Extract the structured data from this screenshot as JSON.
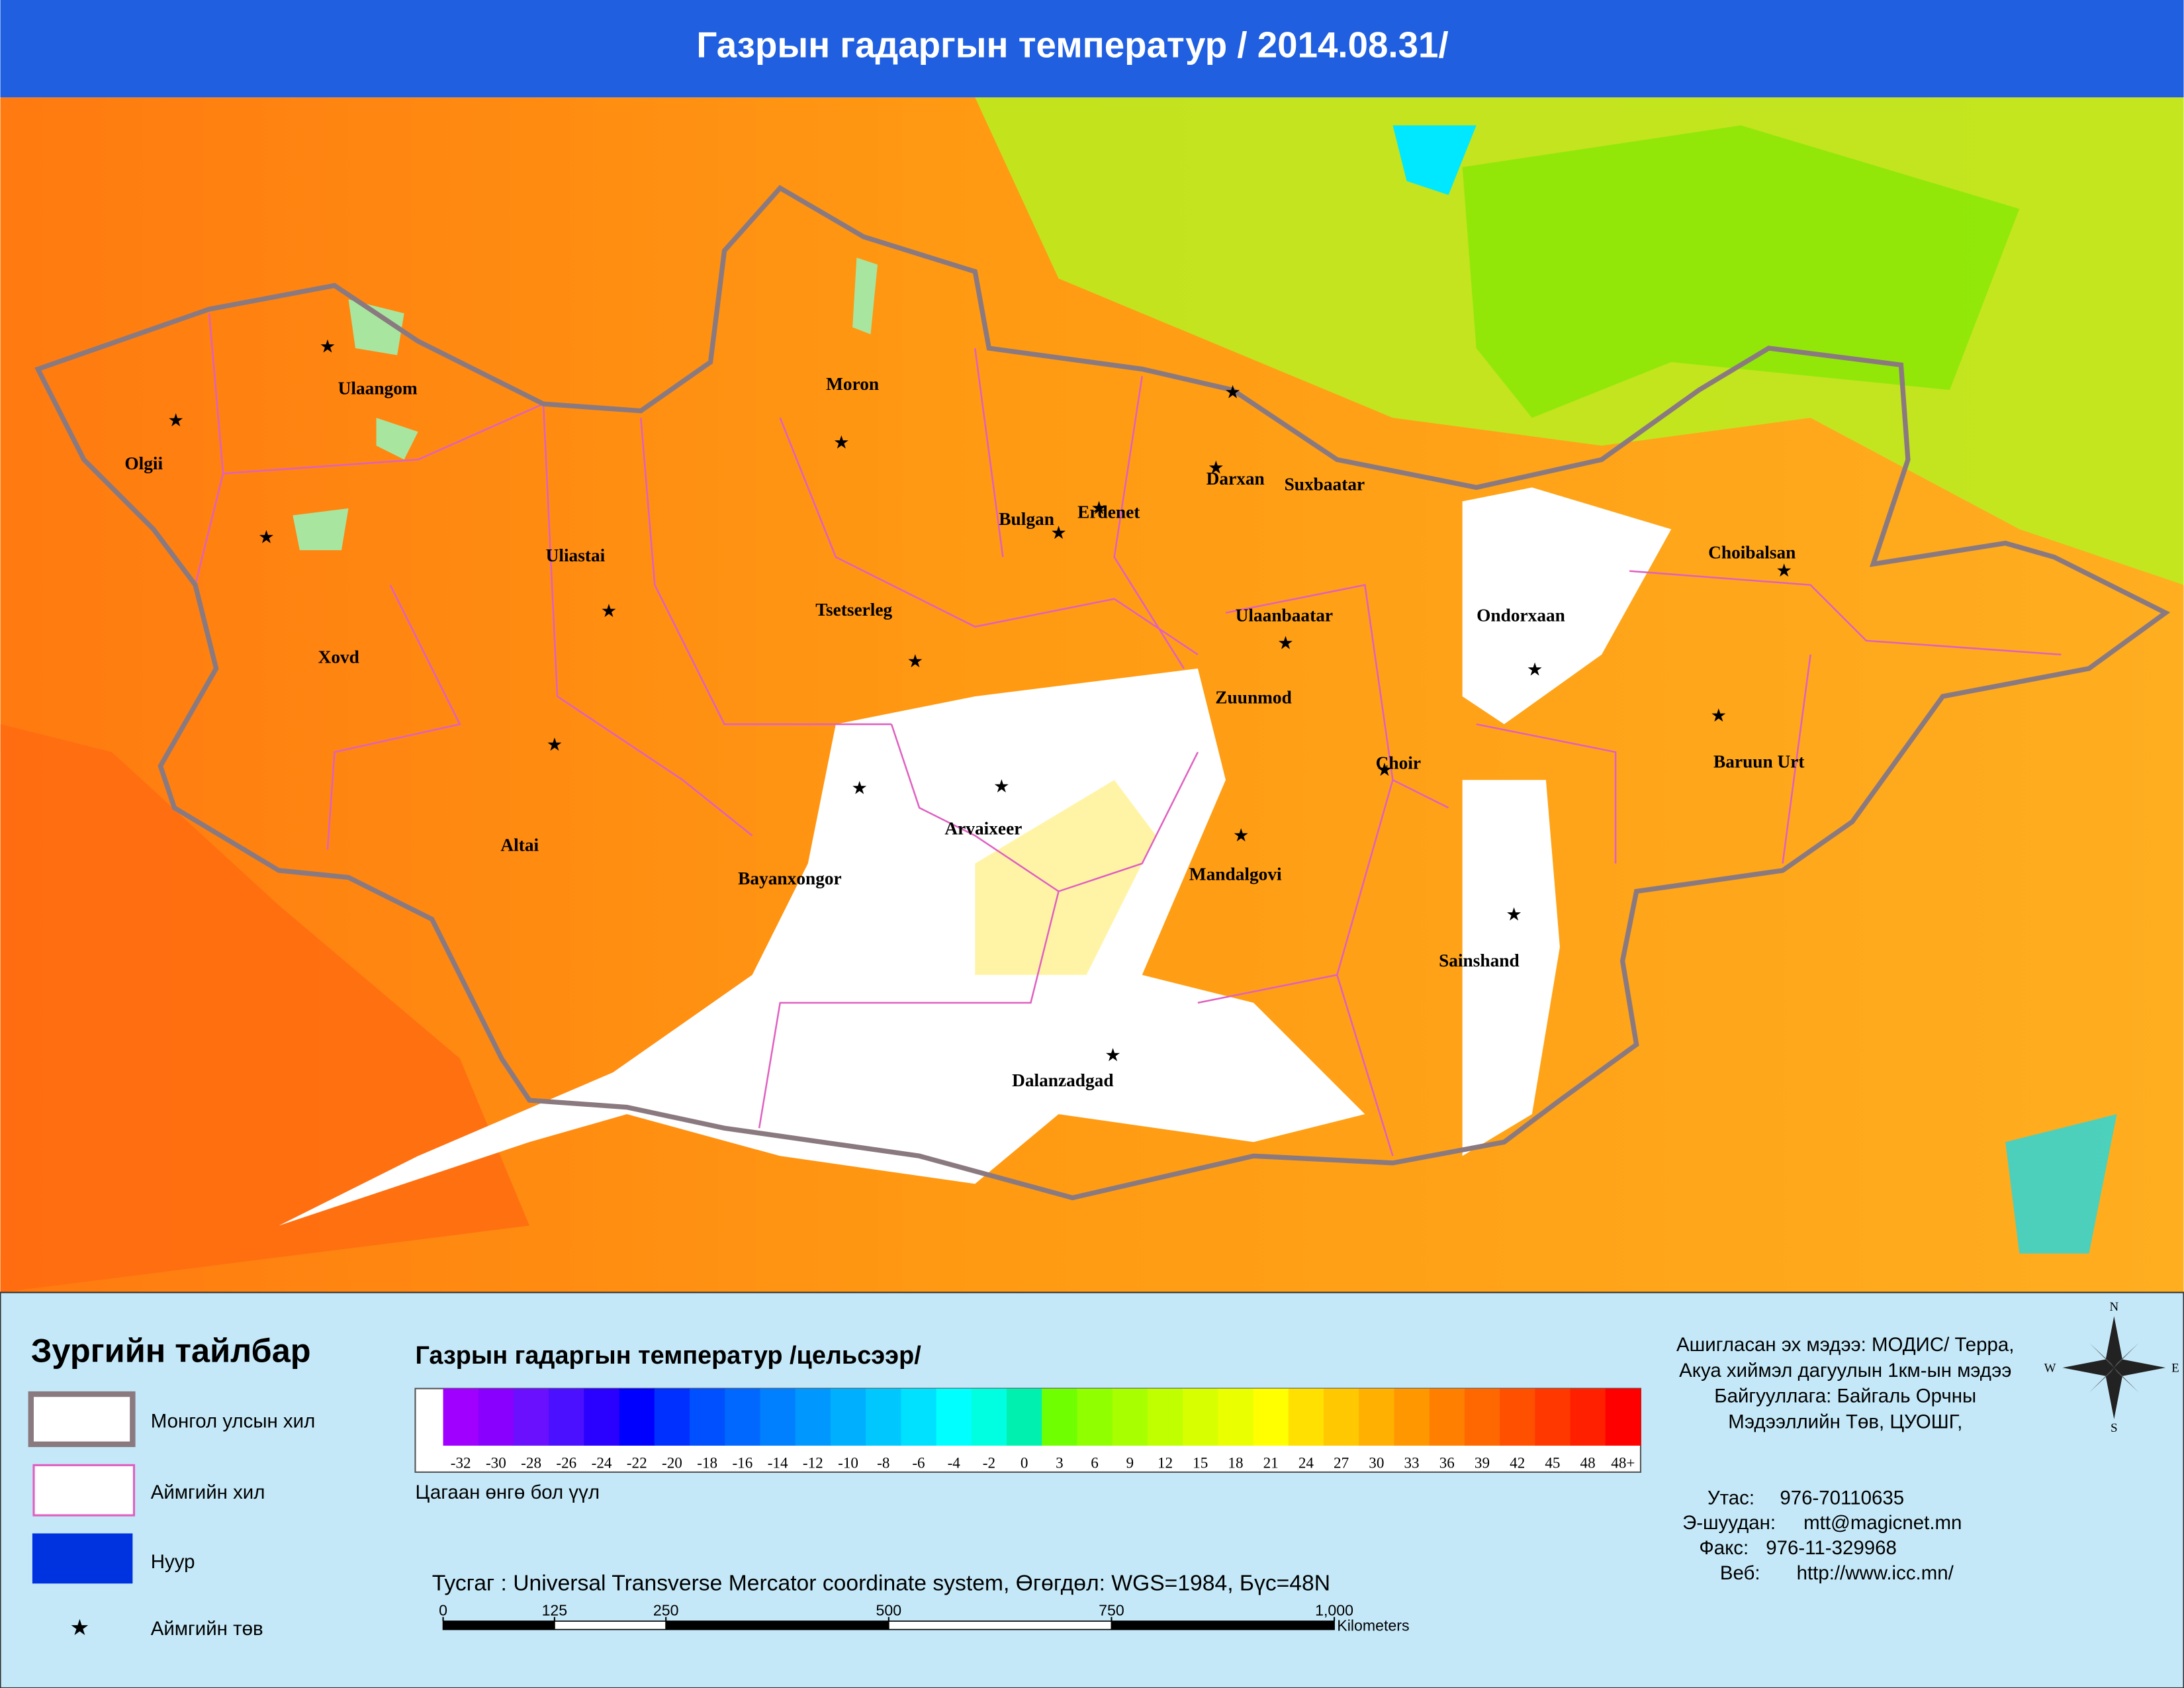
{
  "header": {
    "title": "Газрын гадаргын температур / 2014.08.31/"
  },
  "map": {
    "cities": [
      "Olgii",
      "Ulaangom",
      "Xovd",
      "Uliastai",
      "Altai",
      "Moron",
      "Tsetserleg",
      "Bayanxongor",
      "Arvaixeer",
      "Bulgan",
      "Erdenet",
      "Darxan",
      "Suxbaatar",
      "Ulaanbaatar",
      "Zuunmod",
      "Mandalgovi",
      "Choir",
      "Dalanzadgad",
      "Sainshand",
      "Ondorxaan",
      "Choibalsan",
      "Baruun Urt"
    ]
  },
  "legend": {
    "title": "Зургийн тайлбар",
    "items": [
      "Монгол улсын хил",
      "Аймгийн хил",
      "Нуур",
      "Аймгийн төв"
    ]
  },
  "colorbar": {
    "title": "Газрын гадаргын температур /цельсээр/",
    "note": "Цагаан өнгө бол үүл",
    "entries": [
      {
        "label": -32,
        "color": "#a000ff"
      },
      {
        "label": -30,
        "color": "#8a00ff"
      },
      {
        "label": -28,
        "color": "#6a10ff"
      },
      {
        "label": -26,
        "color": "#4a10ff"
      },
      {
        "label": -24,
        "color": "#2a00ff"
      },
      {
        "label": -22,
        "color": "#0000ff"
      },
      {
        "label": -20,
        "color": "#0030ff"
      },
      {
        "label": -18,
        "color": "#0050ff"
      },
      {
        "label": -16,
        "color": "#0068ff"
      },
      {
        "label": -14,
        "color": "#0080ff"
      },
      {
        "label": -12,
        "color": "#0098ff"
      },
      {
        "label": -10,
        "color": "#00b0ff"
      },
      {
        "label": -8,
        "color": "#00c8ff"
      },
      {
        "label": -6,
        "color": "#00e0ff"
      },
      {
        "label": -4,
        "color": "#00ffff"
      },
      {
        "label": -2,
        "color": "#00ffe0"
      },
      {
        "label": 0,
        "color": "#00f0b0"
      },
      {
        "label": 3,
        "color": "#70ff00"
      },
      {
        "label": 6,
        "color": "#90ff00"
      },
      {
        "label": 9,
        "color": "#a8ff00"
      },
      {
        "label": 12,
        "color": "#c0ff00"
      },
      {
        "label": 15,
        "color": "#d8ff00"
      },
      {
        "label": 18,
        "color": "#eaff00"
      },
      {
        "label": 21,
        "color": "#ffff00"
      },
      {
        "label": 24,
        "color": "#ffe000"
      },
      {
        "label": 27,
        "color": "#ffc800"
      },
      {
        "label": 30,
        "color": "#ffb000"
      },
      {
        "label": 33,
        "color": "#ff9800"
      },
      {
        "label": 36,
        "color": "#ff8000"
      },
      {
        "label": 39,
        "color": "#ff6800"
      },
      {
        "label": 42,
        "color": "#ff5000"
      },
      {
        "label": 45,
        "color": "#ff3800"
      },
      {
        "label": 48,
        "color": "#ff2000"
      },
      {
        "label": "48+",
        "color": "#ff0000"
      }
    ]
  },
  "projection": "Тусгаг : Universal Transverse Mercator coordinate system, Өгөгдөл: WGS=1984, Бүс=48N",
  "scale": {
    "ticks": [
      0,
      125,
      250,
      500,
      750,
      {
        "value": 1000,
        "label": "1,000"
      }
    ],
    "unit": "Kilometers"
  },
  "credits": {
    "lines": [
      "Ашигласан эх мэдээ: МОДИС/ Терра,",
      "Акуа хиймэл дагуулын 1км-ын мэдээ",
      "Байгууллага: Байгаль Орчны",
      "Мэдээллийн Төв, ЦУОШГ,"
    ],
    "contacts": [
      [
        "Утас:",
        "976-70110635"
      ],
      [
        "Э-шуудан:",
        "mtt@magicnet.mn"
      ],
      [
        "Факс:",
        "976-11-329968"
      ],
      [
        "Веб:",
        "http://www.icc.mn/"
      ]
    ]
  },
  "compass": {
    "N": "N",
    "E": "E",
    "S": "S",
    "W": "W"
  }
}
